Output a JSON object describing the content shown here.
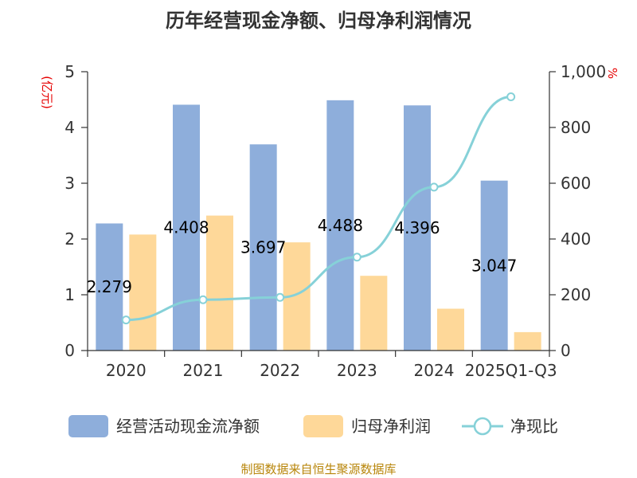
{
  "chart_data": {
    "type": "bar",
    "title": "历年经营现金净额、归母净利润情况",
    "categories": [
      "2020",
      "2021",
      "2022",
      "2023",
      "2024",
      "2025Q1-Q3"
    ],
    "series": [
      {
        "name": "经营活动现金流净额",
        "kind": "bar",
        "axis": "left",
        "color": "#8eaedb",
        "values": [
          2.279,
          4.408,
          3.697,
          4.488,
          4.396,
          3.047
        ],
        "labels": [
          "2.279",
          "4.408",
          "3.697",
          "4.488",
          "4.396",
          "3.047"
        ]
      },
      {
        "name": "归母净利润",
        "kind": "bar",
        "axis": "left",
        "color": "#fed899",
        "values": [
          2.08,
          2.42,
          1.94,
          1.34,
          0.75,
          0.33
        ]
      },
      {
        "name": "净现比",
        "kind": "line",
        "axis": "right",
        "color": "#86d1d8",
        "values": [
          109.6,
          182.2,
          190.6,
          335.0,
          586.1,
          910.0
        ]
      }
    ],
    "yleft": {
      "unit": "(亿元)",
      "ylim": [
        0,
        5
      ],
      "ticks": [
        0,
        1,
        2,
        3,
        4,
        5
      ],
      "tick_labels": [
        "0",
        "1",
        "2",
        "3",
        "4",
        "5"
      ]
    },
    "yright": {
      "unit": "%",
      "ylim": [
        0,
        1000
      ],
      "ticks": [
        0,
        200,
        400,
        600,
        800,
        1000
      ],
      "tick_labels": [
        "0",
        "200",
        "400",
        "600",
        "800",
        "1,000"
      ]
    },
    "legend_position": "bottom",
    "grid": false
  },
  "source": "制图数据来自恒生聚源数据库"
}
